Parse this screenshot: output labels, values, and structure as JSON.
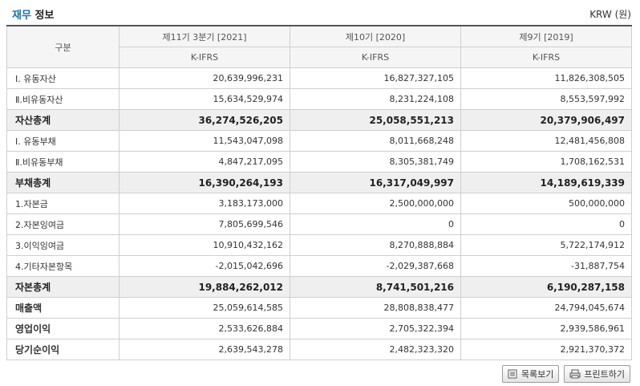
{
  "header": {
    "title_highlight": "재무",
    "title_rest": " 정보",
    "unit": "KRW (원)"
  },
  "table": {
    "col_label": "구분",
    "periods": [
      "제11기 3분기 [2021]",
      "제10기 [2020]",
      "제9기 [2019]"
    ],
    "standards": [
      "K-IFRS",
      "K-IFRS",
      "K-IFRS"
    ],
    "rows": [
      {
        "label": "Ⅰ. 유동자산",
        "values": [
          "20,639,996,231",
          "16,827,327,105",
          "11,826,308,505"
        ],
        "style": "normal"
      },
      {
        "label": "Ⅱ.비유동자산",
        "values": [
          "15,634,529,974",
          "8,231,224,108",
          "8,553,597,992"
        ],
        "style": "normal"
      },
      {
        "label": "자산총계",
        "values": [
          "36,274,526,205",
          "25,058,551,213",
          "20,379,906,497"
        ],
        "style": "total"
      },
      {
        "label": "Ⅰ. 유동부채",
        "values": [
          "11,543,047,098",
          "8,011,668,248",
          "12,481,456,808"
        ],
        "style": "normal"
      },
      {
        "label": "Ⅱ.비유동부채",
        "values": [
          "4,847,217,095",
          "8,305,381,749",
          "1,708,162,531"
        ],
        "style": "normal"
      },
      {
        "label": "부채총계",
        "values": [
          "16,390,264,193",
          "16,317,049,997",
          "14,189,619,339"
        ],
        "style": "total"
      },
      {
        "label": "1.자본금",
        "values": [
          "3,183,173,000",
          "2,500,000,000",
          "500,000,000"
        ],
        "style": "normal"
      },
      {
        "label": "2.자본잉여금",
        "values": [
          "7,805,699,546",
          "0",
          "0"
        ],
        "style": "normal"
      },
      {
        "label": "3.이익잉여금",
        "values": [
          "10,910,432,162",
          "8,270,888,884",
          "5,722,174,912"
        ],
        "style": "normal"
      },
      {
        "label": "4.기타자본항목",
        "values": [
          "-2,015,042,696",
          "-2,029,387,668",
          "-31,887,754"
        ],
        "style": "normal"
      },
      {
        "label": "자본총계",
        "values": [
          "19,884,262,012",
          "8,741,501,216",
          "6,190,287,158"
        ],
        "style": "total"
      },
      {
        "label": "매출액",
        "values": [
          "25,059,614,585",
          "28,808,838,477",
          "24,794,045,674"
        ],
        "style": "bold"
      },
      {
        "label": "영업이익",
        "values": [
          "2,533,626,884",
          "2,705,322,394",
          "2,939,586,961"
        ],
        "style": "bold"
      },
      {
        "label": "당기순이익",
        "values": [
          "2,639,543,278",
          "2,482,323,320",
          "2,921,370,372"
        ],
        "style": "bold"
      }
    ]
  },
  "buttons": {
    "list_label": "목록보기",
    "print_label": "프린트하기"
  }
}
